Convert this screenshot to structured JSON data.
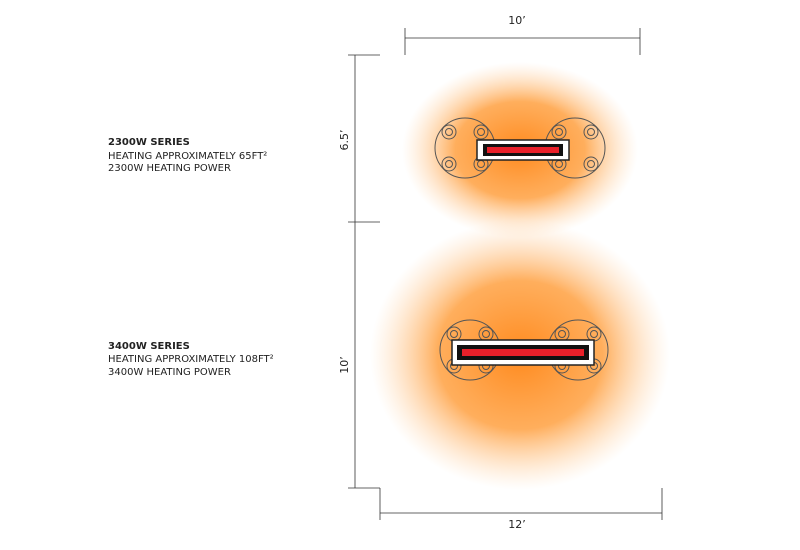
{
  "dimensions": {
    "top_width": "10’",
    "upper_height": "6.5’",
    "lower_height": "10’",
    "bottom_width": "12’"
  },
  "series": [
    {
      "title": "2300W SERIES",
      "coverage": "HEATING APPROXIMATELY 65FT²",
      "power": "2300W HEATING POWER"
    },
    {
      "title": "3400W SERIES",
      "coverage": "HEATING APPROXIMATELY 108FT²",
      "power": "3400W HEATING POWER"
    }
  ]
}
